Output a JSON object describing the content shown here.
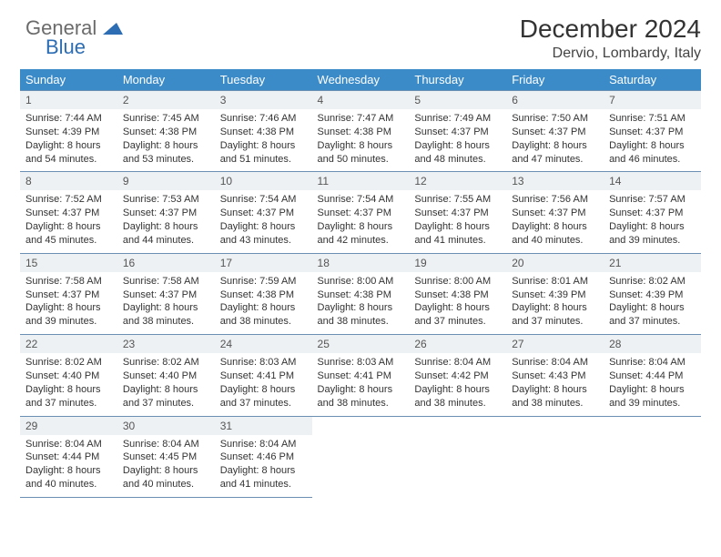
{
  "logo": {
    "line1": "General",
    "line2": "Blue"
  },
  "header": {
    "title": "December 2024",
    "subtitle": "Dervio, Lombardy, Italy"
  },
  "style": {
    "header_bg": "#3b8bc9",
    "header_text": "#ffffff",
    "daynum_bg": "#eef1f3",
    "border_color": "#6a8fb3",
    "logo_icon_color": "#2d6db3",
    "title_fontsize": 28,
    "subtitle_fontsize": 16,
    "th_fontsize": 13,
    "cell_fontsize": 11
  },
  "day_headers": [
    "Sunday",
    "Monday",
    "Tuesday",
    "Wednesday",
    "Thursday",
    "Friday",
    "Saturday"
  ],
  "weeks": [
    [
      {
        "n": "1",
        "sr": "Sunrise: 7:44 AM",
        "ss": "Sunset: 4:39 PM",
        "dl": "Daylight: 8 hours and 54 minutes."
      },
      {
        "n": "2",
        "sr": "Sunrise: 7:45 AM",
        "ss": "Sunset: 4:38 PM",
        "dl": "Daylight: 8 hours and 53 minutes."
      },
      {
        "n": "3",
        "sr": "Sunrise: 7:46 AM",
        "ss": "Sunset: 4:38 PM",
        "dl": "Daylight: 8 hours and 51 minutes."
      },
      {
        "n": "4",
        "sr": "Sunrise: 7:47 AM",
        "ss": "Sunset: 4:38 PM",
        "dl": "Daylight: 8 hours and 50 minutes."
      },
      {
        "n": "5",
        "sr": "Sunrise: 7:49 AM",
        "ss": "Sunset: 4:37 PM",
        "dl": "Daylight: 8 hours and 48 minutes."
      },
      {
        "n": "6",
        "sr": "Sunrise: 7:50 AM",
        "ss": "Sunset: 4:37 PM",
        "dl": "Daylight: 8 hours and 47 minutes."
      },
      {
        "n": "7",
        "sr": "Sunrise: 7:51 AM",
        "ss": "Sunset: 4:37 PM",
        "dl": "Daylight: 8 hours and 46 minutes."
      }
    ],
    [
      {
        "n": "8",
        "sr": "Sunrise: 7:52 AM",
        "ss": "Sunset: 4:37 PM",
        "dl": "Daylight: 8 hours and 45 minutes."
      },
      {
        "n": "9",
        "sr": "Sunrise: 7:53 AM",
        "ss": "Sunset: 4:37 PM",
        "dl": "Daylight: 8 hours and 44 minutes."
      },
      {
        "n": "10",
        "sr": "Sunrise: 7:54 AM",
        "ss": "Sunset: 4:37 PM",
        "dl": "Daylight: 8 hours and 43 minutes."
      },
      {
        "n": "11",
        "sr": "Sunrise: 7:54 AM",
        "ss": "Sunset: 4:37 PM",
        "dl": "Daylight: 8 hours and 42 minutes."
      },
      {
        "n": "12",
        "sr": "Sunrise: 7:55 AM",
        "ss": "Sunset: 4:37 PM",
        "dl": "Daylight: 8 hours and 41 minutes."
      },
      {
        "n": "13",
        "sr": "Sunrise: 7:56 AM",
        "ss": "Sunset: 4:37 PM",
        "dl": "Daylight: 8 hours and 40 minutes."
      },
      {
        "n": "14",
        "sr": "Sunrise: 7:57 AM",
        "ss": "Sunset: 4:37 PM",
        "dl": "Daylight: 8 hours and 39 minutes."
      }
    ],
    [
      {
        "n": "15",
        "sr": "Sunrise: 7:58 AM",
        "ss": "Sunset: 4:37 PM",
        "dl": "Daylight: 8 hours and 39 minutes."
      },
      {
        "n": "16",
        "sr": "Sunrise: 7:58 AM",
        "ss": "Sunset: 4:37 PM",
        "dl": "Daylight: 8 hours and 38 minutes."
      },
      {
        "n": "17",
        "sr": "Sunrise: 7:59 AM",
        "ss": "Sunset: 4:38 PM",
        "dl": "Daylight: 8 hours and 38 minutes."
      },
      {
        "n": "18",
        "sr": "Sunrise: 8:00 AM",
        "ss": "Sunset: 4:38 PM",
        "dl": "Daylight: 8 hours and 38 minutes."
      },
      {
        "n": "19",
        "sr": "Sunrise: 8:00 AM",
        "ss": "Sunset: 4:38 PM",
        "dl": "Daylight: 8 hours and 37 minutes."
      },
      {
        "n": "20",
        "sr": "Sunrise: 8:01 AM",
        "ss": "Sunset: 4:39 PM",
        "dl": "Daylight: 8 hours and 37 minutes."
      },
      {
        "n": "21",
        "sr": "Sunrise: 8:02 AM",
        "ss": "Sunset: 4:39 PM",
        "dl": "Daylight: 8 hours and 37 minutes."
      }
    ],
    [
      {
        "n": "22",
        "sr": "Sunrise: 8:02 AM",
        "ss": "Sunset: 4:40 PM",
        "dl": "Daylight: 8 hours and 37 minutes."
      },
      {
        "n": "23",
        "sr": "Sunrise: 8:02 AM",
        "ss": "Sunset: 4:40 PM",
        "dl": "Daylight: 8 hours and 37 minutes."
      },
      {
        "n": "24",
        "sr": "Sunrise: 8:03 AM",
        "ss": "Sunset: 4:41 PM",
        "dl": "Daylight: 8 hours and 37 minutes."
      },
      {
        "n": "25",
        "sr": "Sunrise: 8:03 AM",
        "ss": "Sunset: 4:41 PM",
        "dl": "Daylight: 8 hours and 38 minutes."
      },
      {
        "n": "26",
        "sr": "Sunrise: 8:04 AM",
        "ss": "Sunset: 4:42 PM",
        "dl": "Daylight: 8 hours and 38 minutes."
      },
      {
        "n": "27",
        "sr": "Sunrise: 8:04 AM",
        "ss": "Sunset: 4:43 PM",
        "dl": "Daylight: 8 hours and 38 minutes."
      },
      {
        "n": "28",
        "sr": "Sunrise: 8:04 AM",
        "ss": "Sunset: 4:44 PM",
        "dl": "Daylight: 8 hours and 39 minutes."
      }
    ],
    [
      {
        "n": "29",
        "sr": "Sunrise: 8:04 AM",
        "ss": "Sunset: 4:44 PM",
        "dl": "Daylight: 8 hours and 40 minutes."
      },
      {
        "n": "30",
        "sr": "Sunrise: 8:04 AM",
        "ss": "Sunset: 4:45 PM",
        "dl": "Daylight: 8 hours and 40 minutes."
      },
      {
        "n": "31",
        "sr": "Sunrise: 8:04 AM",
        "ss": "Sunset: 4:46 PM",
        "dl": "Daylight: 8 hours and 41 minutes."
      },
      null,
      null,
      null,
      null
    ]
  ]
}
